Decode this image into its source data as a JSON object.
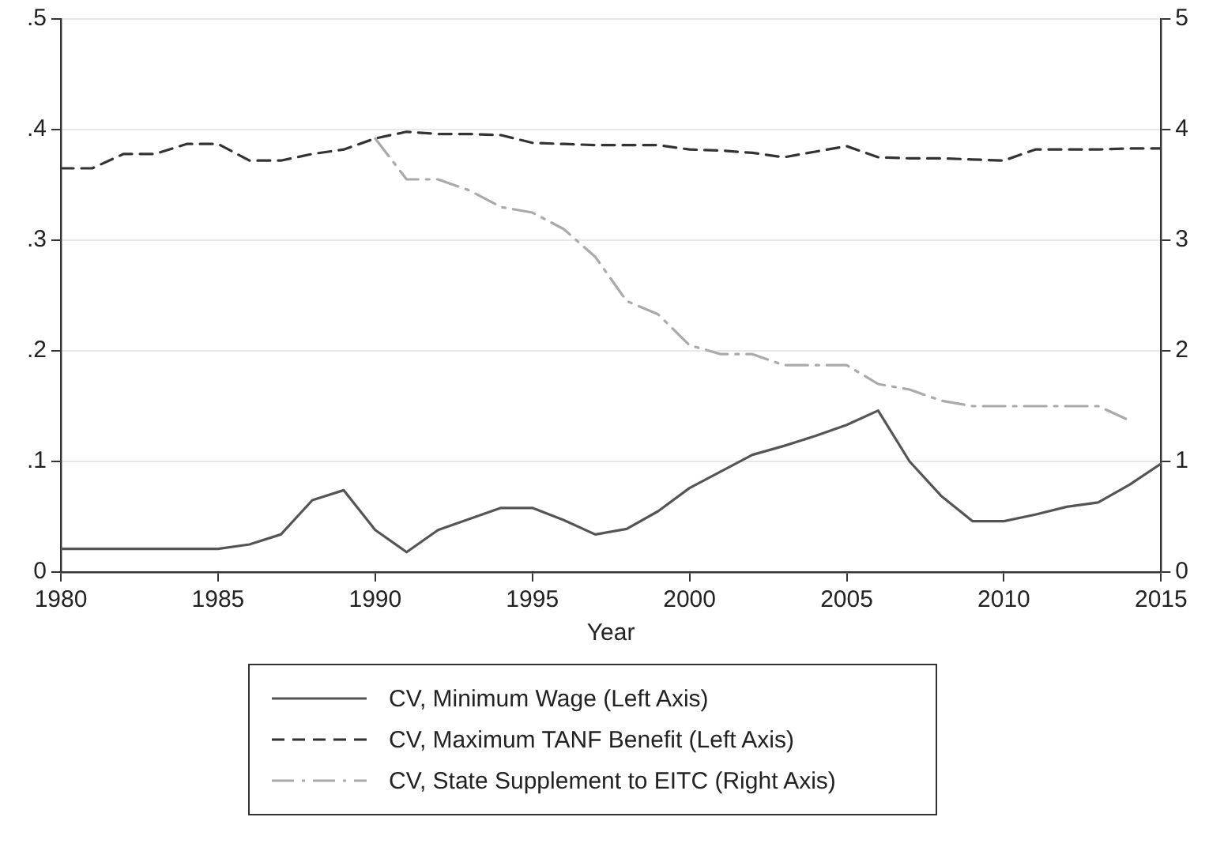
{
  "chart_data": {
    "type": "line",
    "xlabel": "Year",
    "x": [
      1980,
      1981,
      1982,
      1983,
      1984,
      1985,
      1986,
      1987,
      1988,
      1989,
      1990,
      1991,
      1992,
      1993,
      1994,
      1995,
      1996,
      1997,
      1998,
      1999,
      2000,
      2001,
      2002,
      2003,
      2004,
      2005,
      2006,
      2007,
      2008,
      2009,
      2010,
      2011,
      2012,
      2013,
      2014,
      2015
    ],
    "xlim": [
      1980,
      2015
    ],
    "xticks": [
      1980,
      1985,
      1990,
      1995,
      2000,
      2005,
      2010,
      2015
    ],
    "ylim": [
      0,
      0.5
    ],
    "yticks": [
      {
        "value": 0,
        "label": "0"
      },
      {
        "value": 0.1,
        "label": ".1"
      },
      {
        "value": 0.2,
        "label": ".2"
      },
      {
        "value": 0.3,
        "label": ".3"
      },
      {
        "value": 0.4,
        "label": ".4"
      },
      {
        "value": 0.5,
        "label": ".5"
      }
    ],
    "y2lim": [
      0,
      5
    ],
    "y2ticks": [
      0,
      1,
      2,
      3,
      4,
      5
    ],
    "grid": "y",
    "legend": "bottom",
    "marker": "none",
    "series": [
      {
        "name": "CV, Minimum Wage (Left Axis)",
        "color": "#555555",
        "line_style": "solid",
        "values": [
          0.021,
          0.021,
          0.021,
          0.021,
          0.021,
          0.021,
          0.025,
          0.034,
          0.065,
          0.074,
          0.038,
          0.018,
          0.038,
          0.048,
          0.058,
          0.058,
          0.047,
          0.034,
          0.039,
          0.055,
          0.076,
          0.091,
          0.106,
          0.114,
          0.123,
          0.133,
          0.146,
          0.1,
          0.069,
          0.046,
          0.046,
          0.052,
          0.059,
          0.063,
          0.079,
          0.098
        ]
      },
      {
        "name": "CV, Maximum TANF Benefit (Left Axis)",
        "color": "#333333",
        "line_style": "dashed",
        "values": [
          0.365,
          0.365,
          0.378,
          0.378,
          0.387,
          0.387,
          0.372,
          0.372,
          0.378,
          0.382,
          0.392,
          0.398,
          0.396,
          0.396,
          0.395,
          0.388,
          0.387,
          0.386,
          0.386,
          0.386,
          0.382,
          0.381,
          0.379,
          0.375,
          0.38,
          0.385,
          0.375,
          0.374,
          0.374,
          0.373,
          0.372,
          0.382,
          0.382,
          0.382,
          0.383,
          0.383
        ]
      },
      {
        "name": "CV, State Supplement to EITC (Right Axis)",
        "color": "#aaaaaa",
        "line_style": "dashdot",
        "axis": "y2",
        "values": [
          null,
          null,
          null,
          null,
          null,
          null,
          null,
          null,
          null,
          null,
          3.92,
          3.55,
          3.55,
          3.45,
          3.3,
          3.25,
          3.1,
          2.85,
          2.45,
          2.33,
          2.05,
          1.97,
          1.97,
          1.87,
          1.87,
          1.87,
          1.7,
          1.65,
          1.55,
          1.5,
          1.5,
          1.5,
          1.5,
          1.5,
          1.37,
          null
        ]
      }
    ]
  }
}
